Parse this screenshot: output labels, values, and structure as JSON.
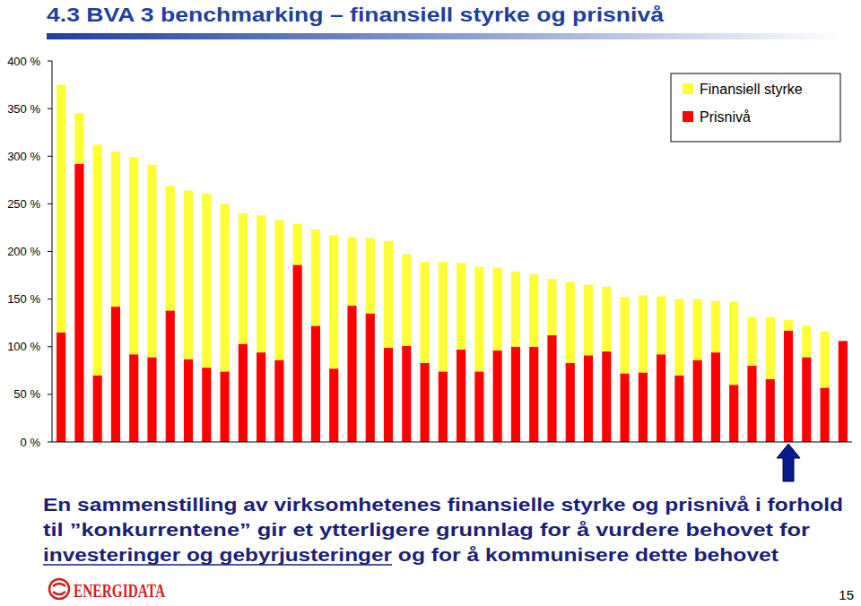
{
  "chart_data": {
    "type": "bar",
    "title": "4.3 BVA 3 benchmarking – finansiell styrke og prisnivå",
    "categories": [
      null,
      null,
      null,
      null,
      null,
      null,
      null,
      null,
      null,
      null,
      null,
      null,
      null,
      null,
      null,
      null,
      null,
      null,
      null,
      null,
      null,
      null,
      null,
      null,
      null,
      null,
      null,
      null,
      null,
      null,
      null,
      null,
      null,
      null,
      null,
      null,
      null,
      null,
      null,
      null,
      null,
      null,
      null,
      null
    ],
    "series": [
      {
        "name": "Prisnivå",
        "color": "#ff0000",
        "values": [
          115,
          292,
          70,
          142,
          92,
          89,
          138,
          87,
          78,
          74,
          103,
          94,
          86,
          186,
          122,
          77,
          143,
          135,
          99,
          101,
          83,
          74,
          97,
          74,
          96,
          100,
          100,
          112,
          83,
          91,
          95,
          72,
          73,
          92,
          70,
          86,
          94,
          60,
          80,
          66,
          117,
          89,
          57,
          106
        ]
      },
      {
        "name": "Finansiell styrke",
        "color": "#ffff33",
        "values": [
          260,
          53,
          242,
          163,
          207,
          202,
          131,
          177,
          183,
          176,
          137,
          144,
          147,
          43,
          101,
          140,
          72,
          79,
          112,
          96,
          106,
          115,
          91,
          110,
          87,
          79,
          76,
          59,
          85,
          74,
          68,
          80,
          81,
          61,
          80,
          64,
          54,
          87,
          51,
          65,
          11,
          33,
          59,
          0
        ]
      }
    ],
    "stacked": true,
    "grid": false,
    "legend": "upper right",
    "tick_labels": "y",
    "ylim": [
      0,
      400
    ],
    "yticks": [
      {
        "value": 0,
        "label": "0 %"
      },
      {
        "value": 50,
        "label": "50 %"
      },
      {
        "value": 100,
        "label": "100 %"
      },
      {
        "value": 150,
        "label": "150 %"
      },
      {
        "value": 200,
        "label": "200 %"
      },
      {
        "value": 250,
        "label": "250 %"
      },
      {
        "value": 300,
        "label": "300 %"
      },
      {
        "value": 350,
        "label": "350 %"
      },
      {
        "value": 400,
        "label": "400 %"
      }
    ],
    "annotations": [
      {
        "text": "En sammenstilling av virksomhetenes finansielle styrke og prisnivå i forhold"
      },
      {
        "text": "til ”konkurrentene” gir et ytterligere grunnlag for å vurdere behovet for"
      },
      {
        "text": "investeringer og gebyrjusteringer"
      },
      {
        "text": " og for å kommunisere dette behovet"
      },
      {
        "text": "ENERGIDATA"
      },
      {
        "text": "15"
      }
    ]
  }
}
